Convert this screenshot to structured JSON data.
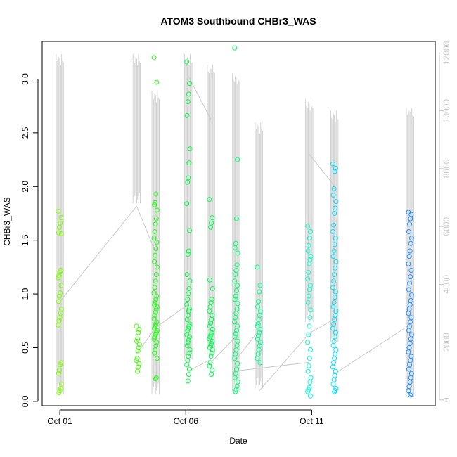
{
  "chart_data": {
    "type": "scatter",
    "title": "ATOM3 Southbound CHBr3_WAS",
    "xlabel": "Date",
    "ylabel": "CHBr3_WAS",
    "x_ticks": [
      "Oct 01",
      "Oct 06",
      "Oct 11"
    ],
    "x_tick_days": [
      1,
      6,
      11
    ],
    "xlim_days": [
      0.3,
      15.9
    ],
    "y_ticks": [
      "0.0",
      "0.5",
      "1.0",
      "1.5",
      "2.0",
      "2.5",
      "3.0"
    ],
    "y_tick_values": [
      0.0,
      0.5,
      1.0,
      1.5,
      2.0,
      2.5,
      3.0
    ],
    "ylim": [
      -0.04,
      3.35
    ],
    "y2_ticks": [
      "0",
      "2000",
      "4000",
      "6000",
      "8000",
      "10000",
      "12000"
    ],
    "y2_tick_values": [
      0,
      2000,
      4000,
      6000,
      8000,
      10000,
      12000
    ],
    "y2lim": [
      -200,
      12400
    ],
    "y2_color": "#c8c8c8",
    "point_color_gradient": [
      "#80ff00",
      "#00ff40",
      "#00ffff",
      "#0080ff"
    ],
    "series": [
      {
        "day": 1.0,
        "color": "#80ff00",
        "y": [
          1.77,
          1.71,
          1.66,
          1.62,
          1.57,
          1.56,
          1.22,
          1.2,
          1.17,
          1.15,
          1.08,
          1.01,
          0.98,
          0.93,
          0.86,
          0.82,
          0.78,
          0.75,
          0.71,
          0.36,
          0.34,
          0.29,
          0.26,
          0.16,
          0.12,
          0.1,
          0.08
        ]
      },
      {
        "day": 4.1,
        "color": "#40ff00",
        "y": [
          0.7,
          0.67,
          0.64,
          0.58,
          0.56,
          0.53,
          0.5,
          0.47,
          0.4,
          0.38,
          0.35,
          0.32,
          0.28
        ]
      },
      {
        "day": 4.8,
        "color": "#20ff10",
        "y": [
          3.2,
          2.97,
          1.93,
          1.85,
          1.83,
          1.78,
          1.7,
          1.65,
          1.58,
          1.52,
          1.48,
          1.42,
          1.36,
          1.3,
          1.25,
          1.18,
          1.12,
          1.06,
          1.01,
          0.98,
          0.95,
          0.92,
          0.9,
          0.88,
          0.86,
          0.83,
          0.8,
          0.77,
          0.74,
          0.72,
          0.7,
          0.68,
          0.66,
          0.64,
          0.62,
          0.6,
          0.58,
          0.55,
          0.52,
          0.48,
          0.45,
          0.4,
          0.22,
          0.21
        ]
      },
      {
        "day": 6.1,
        "color": "#00ff40",
        "y": [
          3.16,
          2.96,
          2.86,
          2.79,
          2.66,
          2.35,
          2.22,
          2.08,
          2.04,
          1.84,
          1.59,
          1.4,
          1.37,
          1.18,
          1.12,
          1.05,
          1.0,
          0.95,
          0.9,
          0.86,
          0.84,
          0.8,
          0.76,
          0.72,
          0.7,
          0.68,
          0.66,
          0.62,
          0.6,
          0.57,
          0.55,
          0.52,
          0.48,
          0.45,
          0.42,
          0.38,
          0.34,
          0.3,
          0.25,
          0.19
        ]
      },
      {
        "day": 7.0,
        "color": "#00ff50",
        "y": [
          1.88,
          1.71,
          1.66,
          1.62,
          1.13,
          1.05,
          0.95,
          0.92,
          0.88,
          0.84,
          0.8,
          0.76,
          0.73,
          0.7,
          0.67,
          0.64,
          0.62,
          0.6,
          0.58,
          0.56,
          0.54,
          0.52,
          0.5,
          0.48,
          0.45,
          0.42,
          0.36,
          0.33,
          0.29,
          0.25
        ]
      },
      {
        "day": 8.0,
        "color": "#00ff70",
        "y": [
          3.29,
          2.25,
          1.7,
          1.47,
          1.43,
          1.38,
          1.27,
          1.22,
          1.18,
          1.12,
          1.08,
          1.03,
          0.98,
          0.95,
          0.91,
          0.86,
          0.82,
          0.78,
          0.74,
          0.7,
          0.66,
          0.63,
          0.6,
          0.56,
          0.52,
          0.48,
          0.44,
          0.4,
          0.35,
          0.3,
          0.26,
          0.22,
          0.18,
          0.14,
          0.11,
          0.09
        ]
      },
      {
        "day": 8.9,
        "color": "#00ff90",
        "y": [
          1.25,
          1.08,
          1.02,
          0.93,
          0.88,
          0.84,
          0.8,
          0.76,
          0.72,
          0.7,
          0.67,
          0.64,
          0.61,
          0.58,
          0.55,
          0.52,
          0.48,
          0.44,
          0.4,
          0.36
        ]
      },
      {
        "day": 10.9,
        "color": "#00ffd0",
        "y": [
          1.63,
          1.58,
          1.52,
          1.45,
          1.4,
          1.35,
          1.32,
          1.28,
          1.2,
          1.14,
          1.08,
          1.04,
          0.98,
          0.92,
          0.85,
          0.78,
          0.7,
          0.62,
          0.55,
          0.48,
          0.4,
          0.33,
          0.28,
          0.22,
          0.18,
          0.13,
          0.11,
          0.09,
          0.05
        ]
      },
      {
        "day": 11.9,
        "color": "#00e0ff",
        "y": [
          2.21,
          2.17,
          2.14,
          1.98,
          1.92,
          1.86,
          1.8,
          1.75,
          1.64,
          1.58,
          1.52,
          1.46,
          1.4,
          1.35,
          1.3,
          1.24,
          1.18,
          1.12,
          1.06,
          1.02,
          0.97,
          0.92,
          0.88,
          0.84,
          0.8,
          0.76,
          0.72,
          0.68,
          0.64,
          0.6,
          0.56,
          0.52,
          0.48,
          0.44,
          0.4,
          0.36,
          0.32,
          0.28,
          0.24,
          0.2,
          0.16,
          0.12,
          0.1,
          0.09
        ]
      },
      {
        "day": 14.9,
        "color": "#2090ff",
        "y": [
          1.76,
          1.74,
          1.7,
          1.65,
          1.58,
          1.52,
          1.47,
          1.4,
          1.35,
          1.28,
          1.22,
          1.16,
          1.1,
          1.04,
          0.99,
          0.94,
          0.9,
          0.86,
          0.82,
          0.78,
          0.74,
          0.7,
          0.66,
          0.62,
          0.58,
          0.54,
          0.5,
          0.46,
          0.42,
          0.38,
          0.34,
          0.3,
          0.26,
          0.22,
          0.18,
          0.14,
          0.1,
          0.07,
          0.06
        ]
      }
    ],
    "secondary_series": {
      "name": "",
      "color": "#c8c8c8",
      "spikes": [
        {
          "day": 1.0,
          "top": 12000,
          "low": 200
        },
        {
          "day": 4.05,
          "top": 12700,
          "low": 6800
        },
        {
          "day": 4.8,
          "top": 10700,
          "low": 200
        },
        {
          "day": 6.1,
          "top": 12600,
          "low": 1400
        },
        {
          "day": 7.0,
          "top": 11600,
          "low": 1600
        },
        {
          "day": 8.0,
          "top": 11300,
          "low": 300
        },
        {
          "day": 8.9,
          "top": 9600,
          "low": 400
        },
        {
          "day": 10.9,
          "top": 10400,
          "low": 2700
        },
        {
          "day": 11.9,
          "top": 10000,
          "low": 2000
        },
        {
          "day": 14.9,
          "top": 10100,
          "low": 100
        }
      ],
      "connectors": [
        {
          "from": [
            1.0,
            3400
          ],
          "to": [
            4.05,
            6700
          ]
        },
        {
          "from": [
            4.05,
            1600
          ],
          "to": [
            4.8,
            2500
          ]
        },
        {
          "from": [
            4.05,
            6700
          ],
          "to": [
            4.8,
            5100
          ]
        },
        {
          "from": [
            4.8,
            2500
          ],
          "to": [
            6.1,
            3300
          ]
        },
        {
          "from": [
            6.1,
            11200
          ],
          "to": [
            7.0,
            9700
          ]
        },
        {
          "from": [
            6.1,
            1000
          ],
          "to": [
            7.0,
            1400
          ]
        },
        {
          "from": [
            7.0,
            1300
          ],
          "to": [
            8.0,
            2200
          ]
        },
        {
          "from": [
            8.0,
            1400
          ],
          "to": [
            8.9,
            2400
          ]
        },
        {
          "from": [
            8.0,
            1000
          ],
          "to": [
            10.9,
            1300
          ]
        },
        {
          "from": [
            8.9,
            300
          ],
          "to": [
            10.9,
            2300
          ]
        },
        {
          "from": [
            10.9,
            8500
          ],
          "to": [
            11.9,
            7400
          ]
        },
        {
          "from": [
            10.9,
            2300
          ],
          "to": [
            11.9,
            2800
          ]
        },
        {
          "from": [
            11.9,
            900
          ],
          "to": [
            14.9,
            2600
          ]
        }
      ]
    },
    "grid": false,
    "legend": "none"
  }
}
